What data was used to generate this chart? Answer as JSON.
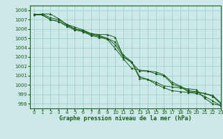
{
  "title": "Graphe pression niveau de la mer (hPa)",
  "bg_color": "#cce8e8",
  "grid_color": "#99cccc",
  "line_color": "#1a5c1a",
  "xlim": [
    -0.5,
    23
  ],
  "ylim": [
    997.5,
    1008.5
  ],
  "yticks": [
    998,
    999,
    1000,
    1001,
    1002,
    1003,
    1004,
    1005,
    1006,
    1007,
    1008
  ],
  "xticks": [
    0,
    1,
    2,
    3,
    4,
    5,
    6,
    7,
    8,
    9,
    10,
    11,
    12,
    13,
    14,
    15,
    16,
    17,
    18,
    19,
    20,
    21,
    22,
    23
  ],
  "series": [
    [
      1007.5,
      1007.6,
      1007.6,
      1007.1,
      1006.5,
      1006.0,
      1005.8,
      1005.5,
      1005.4,
      1005.4,
      1005.1,
      1003.0,
      1002.5,
      1000.7,
      1000.6,
      1000.3,
      999.9,
      999.8,
      999.7,
      999.6,
      999.5,
      998.6,
      998.0,
      997.8
    ],
    [
      1007.5,
      1007.6,
      1007.2,
      1007.0,
      1006.5,
      1006.2,
      1005.9,
      1005.5,
      1005.3,
      1005.0,
      1004.6,
      1003.2,
      1002.5,
      1000.9,
      1000.6,
      1000.1,
      999.7,
      999.4,
      999.3,
      999.2,
      999.1,
      998.8,
      998.3,
      997.8
    ],
    [
      1007.5,
      1007.5,
      1007.0,
      1006.8,
      1006.4,
      1006.0,
      1005.8,
      1005.4,
      1005.2,
      1005.0,
      1004.3,
      1003.0,
      1002.4,
      1001.5,
      1001.5,
      1001.4,
      1001.1,
      1000.3,
      999.9,
      999.4,
      999.3,
      999.1,
      998.9,
      998.1
    ],
    [
      1007.6,
      1007.5,
      1007.0,
      1006.8,
      1006.3,
      1005.9,
      1005.7,
      1005.3,
      1005.1,
      1004.9,
      1003.9,
      1002.8,
      1001.8,
      1001.6,
      1001.5,
      1001.2,
      1001.0,
      1000.1,
      999.8,
      999.3,
      999.2,
      999.1,
      998.8,
      998.0
    ]
  ],
  "xlabel_fontsize": 6,
  "ylabel_fontsize": 5,
  "tick_labelsize": 5
}
